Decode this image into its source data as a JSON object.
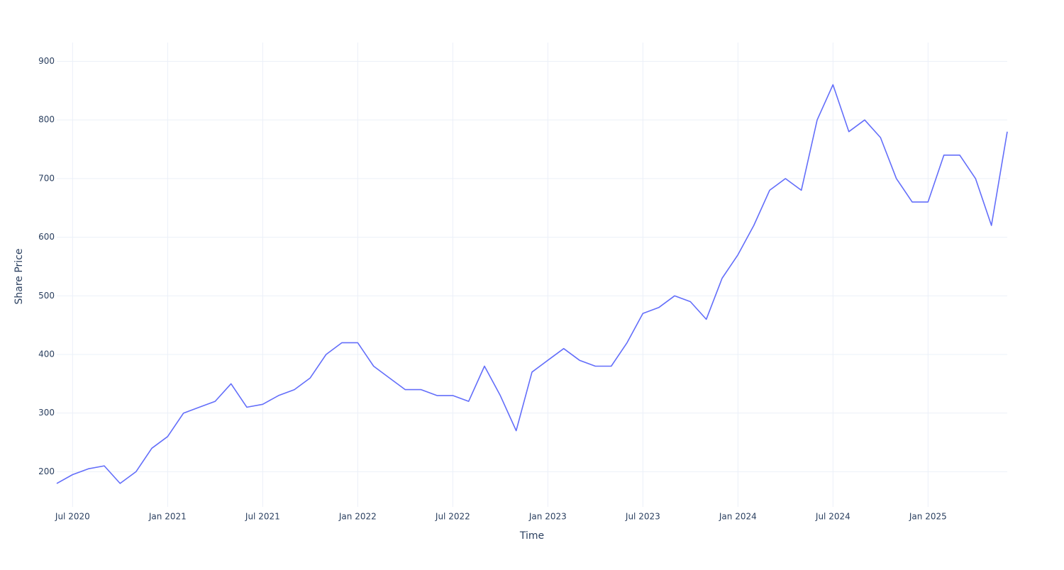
{
  "chart_data": {
    "type": "line",
    "x_label": "Time",
    "y_label": "Share Price",
    "x": [
      "2020-06",
      "2020-07",
      "2020-08",
      "2020-09",
      "2020-10",
      "2020-11",
      "2020-12",
      "2021-01",
      "2021-02",
      "2021-03",
      "2021-04",
      "2021-05",
      "2021-06",
      "2021-07",
      "2021-08",
      "2021-09",
      "2021-10",
      "2021-11",
      "2021-12",
      "2022-01",
      "2022-02",
      "2022-03",
      "2022-04",
      "2022-05",
      "2022-06",
      "2022-07",
      "2022-08",
      "2022-09",
      "2022-10",
      "2022-11",
      "2022-12",
      "2023-01",
      "2023-02",
      "2023-03",
      "2023-04",
      "2023-05",
      "2023-06",
      "2023-07",
      "2023-08",
      "2023-09",
      "2023-10",
      "2023-11",
      "2023-12",
      "2024-01",
      "2024-02",
      "2024-03",
      "2024-04",
      "2024-05",
      "2024-06",
      "2024-07",
      "2024-08",
      "2024-09",
      "2024-10",
      "2024-11",
      "2024-12",
      "2025-01",
      "2025-02",
      "2025-03",
      "2025-04",
      "2025-05",
      "2025-06"
    ],
    "values": [
      180,
      195,
      205,
      210,
      180,
      200,
      240,
      260,
      300,
      310,
      320,
      350,
      310,
      315,
      330,
      340,
      360,
      400,
      420,
      420,
      380,
      360,
      340,
      340,
      330,
      330,
      320,
      380,
      330,
      270,
      370,
      390,
      410,
      390,
      380,
      380,
      420,
      470,
      480,
      500,
      490,
      460,
      530,
      570,
      620,
      680,
      700,
      680,
      800,
      860,
      780,
      800,
      770,
      700,
      660,
      660,
      740,
      740,
      700,
      620,
      780
    ],
    "color": "#636efa",
    "xlim": [
      "2020-06",
      "2025-06"
    ],
    "xticks": [
      {
        "value": "2020-07",
        "label": "Jul 2020"
      },
      {
        "value": "2021-01",
        "label": "Jan 2021"
      },
      {
        "value": "2021-07",
        "label": "Jul 2021"
      },
      {
        "value": "2022-01",
        "label": "Jan 2022"
      },
      {
        "value": "2022-07",
        "label": "Jul 2022"
      },
      {
        "value": "2023-01",
        "label": "Jan 2023"
      },
      {
        "value": "2023-07",
        "label": "Jul 2023"
      },
      {
        "value": "2024-01",
        "label": "Jan 2024"
      },
      {
        "value": "2024-07",
        "label": "Jul 2024"
      },
      {
        "value": "2025-01",
        "label": "Jan 2025"
      }
    ],
    "ylim": [
      140,
      932
    ],
    "yticks": [
      200,
      300,
      400,
      500,
      600,
      700,
      800,
      900
    ],
    "grid": true
  }
}
